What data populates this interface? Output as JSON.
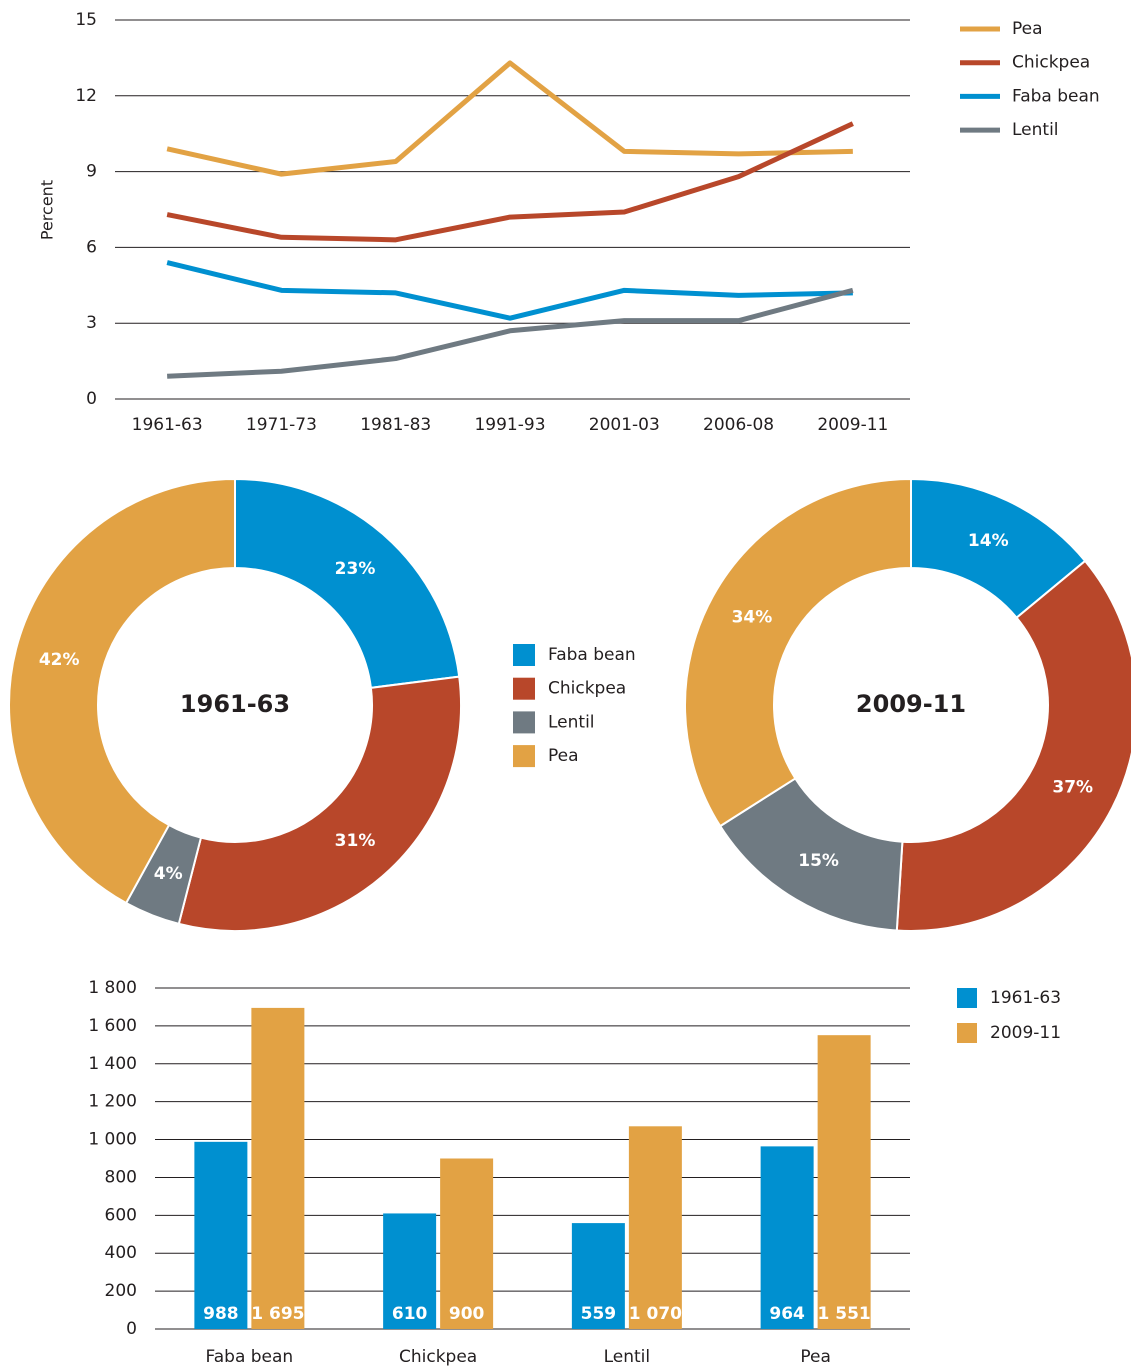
{
  "chart_data": [
    {
      "type": "line",
      "ylabel": "Percent",
      "categories": [
        "1961-63",
        "1971-73",
        "1981-83",
        "1991-93",
        "2001-03",
        "2006-08",
        "2009-11"
      ],
      "ylim": [
        0,
        15
      ],
      "yticks": [
        0,
        3,
        6,
        9,
        12,
        15
      ],
      "grid": true,
      "legend": "right",
      "series": [
        {
          "name": "Pea",
          "color": "#e2a244",
          "values": [
            9.9,
            8.9,
            9.4,
            13.3,
            9.8,
            9.7,
            9.8
          ]
        },
        {
          "name": "Chickpea",
          "color": "#b8472a",
          "values": [
            7.3,
            6.4,
            6.3,
            7.2,
            7.4,
            8.8,
            10.9
          ]
        },
        {
          "name": "Faba bean",
          "color": "#0090d0",
          "values": [
            5.4,
            4.3,
            4.2,
            3.2,
            4.3,
            4.1,
            4.2
          ]
        },
        {
          "name": "Lentil",
          "color": "#6f7a82",
          "values": [
            0.9,
            1.1,
            1.6,
            2.7,
            3.1,
            3.1,
            4.3
          ]
        }
      ]
    },
    {
      "type": "pie",
      "title": "1961-63",
      "categories": [
        "Faba bean",
        "Chickpea",
        "Lentil",
        "Pea"
      ],
      "values": [
        23,
        31,
        4,
        42
      ],
      "value_labels": [
        "23%",
        "31%",
        "4%",
        "42%"
      ],
      "colors": [
        "#0090d0",
        "#b8472a",
        "#6f7a82",
        "#e2a244"
      ]
    },
    {
      "type": "pie",
      "title": "2009-11",
      "categories": [
        "Faba bean",
        "Chickpea",
        "Lentil",
        "Pea"
      ],
      "values": [
        14,
        37,
        15,
        34
      ],
      "value_labels": [
        "14%",
        "37%",
        "15%",
        "34%"
      ],
      "colors": [
        "#0090d0",
        "#b8472a",
        "#6f7a82",
        "#e2a244"
      ]
    },
    {
      "type": "bar",
      "categories": [
        "Faba bean",
        "Chickpea",
        "Lentil",
        "Pea"
      ],
      "ylim": [
        0,
        1800
      ],
      "yticks": [
        0,
        200,
        400,
        600,
        800,
        {
          "value": 1000,
          "label": "1 000"
        },
        {
          "value": 1200,
          "label": "1 200"
        },
        {
          "value": 1400,
          "label": "1 400"
        },
        {
          "value": 1600,
          "label": "1 600"
        },
        {
          "value": 1800,
          "label": "1 800"
        }
      ],
      "grid": true,
      "legend": "right",
      "series": [
        {
          "name": "1961-63",
          "color": "#0090d0",
          "values": [
            988,
            610,
            559,
            964
          ]
        },
        {
          "name": "2009-11",
          "color": "#e2a244",
          "values": [
            1695,
            900,
            1070,
            1551
          ],
          "value_labels": [
            "1 695",
            "900",
            "1 070",
            "1 551"
          ]
        }
      ]
    }
  ]
}
